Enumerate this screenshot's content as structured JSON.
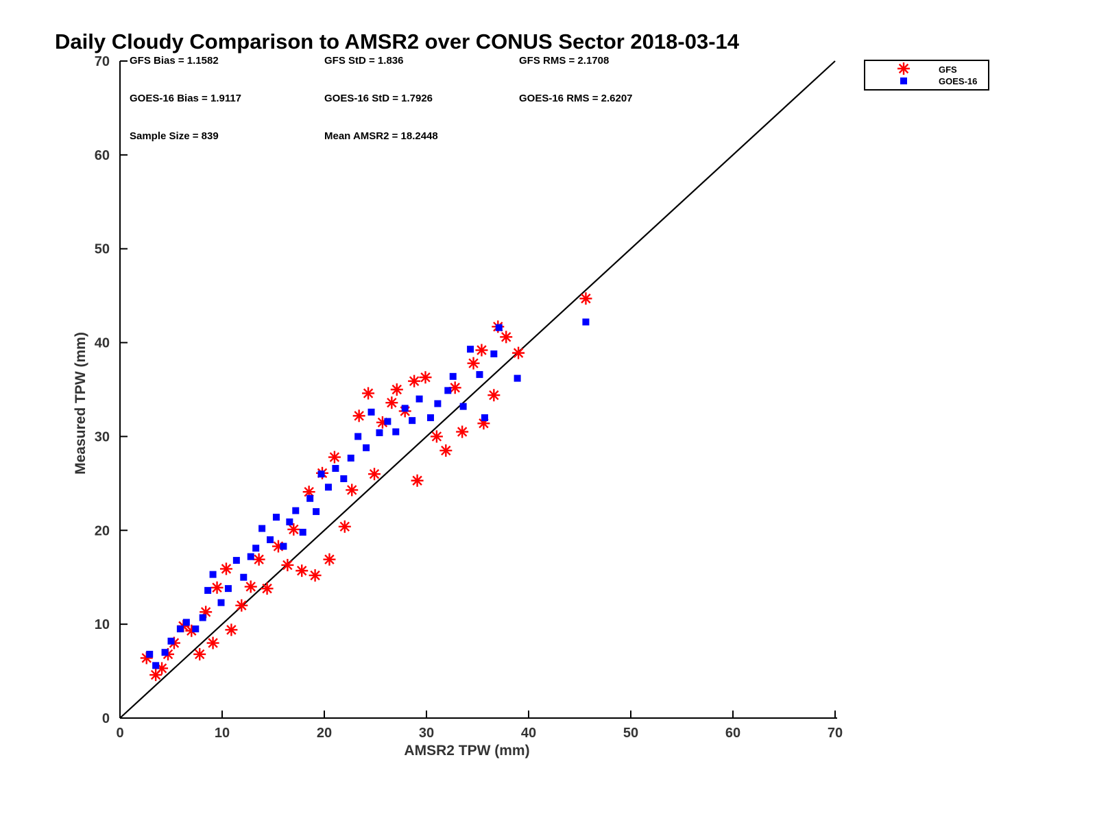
{
  "chart_data": {
    "type": "scatter",
    "title": "Daily Cloudy Comparison to AMSR2 over CONUS Sector 2018-03-14",
    "xlabel": "AMSR2 TPW (mm)",
    "ylabel": "Measured TPW (mm)",
    "xlim": [
      0,
      70
    ],
    "ylim": [
      0,
      70
    ],
    "xticks": [
      "0",
      "10",
      "20",
      "30",
      "40",
      "50",
      "60",
      "70"
    ],
    "yticks": [
      "0",
      "10",
      "20",
      "30",
      "40",
      "50",
      "60",
      "70"
    ],
    "legend": {
      "placement": "outside-top-right",
      "entries": [
        "GFS",
        "GOES-16"
      ]
    },
    "stats": [
      "GFS Bias = 1.1582",
      "GFS StD = 1.836",
      "GFS RMS = 2.1708",
      "GOES-16 Bias = 1.9117",
      "GOES-16 StD = 1.7926",
      "GOES-16 RMS = 2.6207",
      "Sample Size = 839",
      "Mean AMSR2 = 18.2448"
    ],
    "reference_line": {
      "name": "1:1 line",
      "from": [
        0,
        0
      ],
      "to": [
        70,
        70
      ]
    },
    "series": [
      {
        "name": "GFS",
        "marker": "asterisk",
        "color": "#ff0000",
        "points": [
          [
            2.6,
            6.4
          ],
          [
            3.5,
            4.6
          ],
          [
            4.1,
            5.3
          ],
          [
            4.7,
            6.8
          ],
          [
            5.3,
            8.0
          ],
          [
            6.2,
            9.8
          ],
          [
            7.0,
            9.3
          ],
          [
            7.8,
            6.8
          ],
          [
            8.4,
            11.3
          ],
          [
            9.1,
            8.0
          ],
          [
            9.5,
            13.9
          ],
          [
            10.4,
            15.9
          ],
          [
            10.9,
            9.4
          ],
          [
            11.9,
            12.0
          ],
          [
            12.8,
            14.0
          ],
          [
            13.6,
            16.9
          ],
          [
            14.4,
            13.8
          ],
          [
            15.5,
            18.3
          ],
          [
            16.4,
            16.3
          ],
          [
            17.0,
            20.1
          ],
          [
            17.8,
            15.7
          ],
          [
            18.5,
            24.1
          ],
          [
            19.1,
            15.2
          ],
          [
            19.8,
            26.1
          ],
          [
            20.5,
            16.9
          ],
          [
            21.0,
            27.8
          ],
          [
            22.0,
            20.4
          ],
          [
            22.7,
            24.3
          ],
          [
            23.4,
            32.2
          ],
          [
            24.3,
            34.6
          ],
          [
            24.9,
            26.0
          ],
          [
            25.7,
            31.5
          ],
          [
            26.6,
            33.6
          ],
          [
            27.1,
            35.0
          ],
          [
            27.9,
            32.7
          ],
          [
            28.8,
            35.9
          ],
          [
            29.1,
            25.3
          ],
          [
            29.9,
            36.3
          ],
          [
            31.0,
            30.0
          ],
          [
            31.9,
            28.5
          ],
          [
            32.8,
            35.2
          ],
          [
            33.5,
            30.5
          ],
          [
            34.6,
            37.8
          ],
          [
            35.4,
            39.2
          ],
          [
            35.6,
            31.4
          ],
          [
            36.6,
            34.4
          ],
          [
            37.0,
            41.7
          ],
          [
            37.8,
            40.6
          ],
          [
            39.0,
            38.9
          ],
          [
            45.6,
            44.7
          ]
        ]
      },
      {
        "name": "GOES-16",
        "marker": "square",
        "color": "#0000ff",
        "points": [
          [
            2.9,
            6.8
          ],
          [
            3.5,
            5.6
          ],
          [
            4.4,
            7.0
          ],
          [
            5.0,
            8.2
          ],
          [
            5.9,
            9.5
          ],
          [
            6.5,
            10.2
          ],
          [
            7.4,
            9.5
          ],
          [
            8.1,
            10.7
          ],
          [
            8.6,
            13.6
          ],
          [
            9.1,
            15.3
          ],
          [
            9.9,
            12.3
          ],
          [
            10.6,
            13.8
          ],
          [
            11.4,
            16.8
          ],
          [
            12.1,
            15.0
          ],
          [
            12.8,
            17.2
          ],
          [
            13.3,
            18.1
          ],
          [
            13.9,
            20.2
          ],
          [
            14.7,
            19.0
          ],
          [
            15.3,
            21.4
          ],
          [
            16.0,
            18.3
          ],
          [
            16.6,
            20.9
          ],
          [
            17.2,
            22.1
          ],
          [
            17.9,
            19.8
          ],
          [
            18.6,
            23.4
          ],
          [
            19.2,
            22.0
          ],
          [
            19.7,
            26.0
          ],
          [
            20.4,
            24.6
          ],
          [
            21.1,
            26.6
          ],
          [
            21.9,
            25.5
          ],
          [
            22.6,
            27.7
          ],
          [
            23.3,
            30.0
          ],
          [
            24.1,
            28.8
          ],
          [
            24.6,
            32.6
          ],
          [
            25.4,
            30.4
          ],
          [
            26.2,
            31.6
          ],
          [
            27.0,
            30.5
          ],
          [
            27.9,
            33.0
          ],
          [
            28.6,
            31.7
          ],
          [
            29.3,
            34.0
          ],
          [
            30.4,
            32.0
          ],
          [
            31.1,
            33.5
          ],
          [
            32.1,
            34.9
          ],
          [
            32.6,
            36.4
          ],
          [
            33.6,
            33.2
          ],
          [
            34.3,
            39.3
          ],
          [
            35.2,
            36.6
          ],
          [
            35.7,
            32.0
          ],
          [
            36.6,
            38.8
          ],
          [
            37.1,
            41.6
          ],
          [
            38.9,
            36.2
          ],
          [
            45.6,
            42.2
          ]
        ]
      }
    ]
  }
}
